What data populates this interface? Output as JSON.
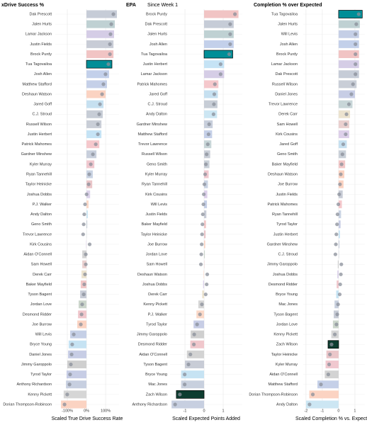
{
  "chart_data": [
    {
      "type": "bar",
      "orientation": "horizontal",
      "title": "xDrive Success %",
      "x_label": "Scaled True Drive Success Rate",
      "categories": [
        "Dak Prescott",
        "Jalen Hurts",
        "Lamar Jackson",
        "Justin Fields",
        "Brock Purdy",
        "Tua Tagovailoa",
        "Josh Allen",
        "Matthew Stafford",
        "Deshaun Watson",
        "Jared Goff",
        "C.J. Stroud",
        "Russell Wilson",
        "Justin Herbert",
        "Patrick Mahomes",
        "Gardner Minshew",
        "Kyler Murray",
        "Ryan Tannehill",
        "Taylor Heinicke",
        "Joshua Dobbs",
        "P.J. Walker",
        "Andy Dalton",
        "Geno Smith",
        "Trevor Lawrence",
        "Kirk Cousins",
        "Aidan O'Connell",
        "Sam Howell",
        "Derek Carr",
        "Baker Mayfield",
        "Tyson Bagent",
        "Jordan Love",
        "Desmond Ridder",
        "Joe Burrow",
        "Will Levis",
        "Bryce Young",
        "Daniel Jones",
        "Jimmy Garoppolo",
        "Tyrod Taylor",
        "Anthony Richardson",
        "Kenny Pickett",
        "Dorian Thompson-Robinson"
      ],
      "values": [
        159,
        148,
        144,
        141,
        141,
        133,
        118,
        107,
        100,
        89,
        85,
        78,
        78,
        67,
        52,
        41,
        33,
        30,
        19,
        11,
        7,
        4,
        1,
        -2,
        -22,
        -22,
        -26,
        -30,
        -33,
        -41,
        -44,
        -48,
        -85,
        -93,
        -96,
        -100,
        -104,
        -107,
        -119,
        -133
      ],
      "xlim": [
        -163,
        170
      ],
      "xticks": [
        {
          "value": -100,
          "label": "-100%"
        },
        {
          "value": 0,
          "label": "0%"
        },
        {
          "value": 100,
          "label": "100%"
        }
      ],
      "grid": true
    },
    {
      "type": "bar",
      "orientation": "horizontal",
      "title": "EPA",
      "subtitle": "Since Week 1",
      "x_label": "Scaled Expected Points Added",
      "categories": [
        "Brock Purdy",
        "Dak Prescott",
        "Jalen Hurts",
        "Josh Allen",
        "Tua Tagovailoa",
        "Justin Herbert",
        "Lamar Jackson",
        "Patrick Mahomes",
        "Jared Goff",
        "C.J. Stroud",
        "Andy Dalton",
        "Gardner Minshew",
        "Matthew Stafford",
        "Trevor Lawrence",
        "Russell Wilson",
        "Geno Smith",
        "Kyler Murray",
        "Ryan Tannehill",
        "Kirk Cousins",
        "Will Levis",
        "Justin Fields",
        "Baker Mayfield",
        "Taylor Heinicke",
        "Joe Burrow",
        "Jordan Love",
        "Sam Howell",
        "Deshaun Watson",
        "Joshua Dobbs",
        "Derek Carr",
        "Kenny Pickett",
        "P.J. Walker",
        "Tyrod Taylor",
        "Jimmy Garoppolo",
        "Desmond Ridder",
        "Aidan O'Connell",
        "Tyson Bagent",
        "Bryce Young",
        "Mac Jones",
        "Zach Wilson",
        "Anthony Richardson"
      ],
      "values": [
        1.8,
        1.55,
        1.55,
        1.55,
        1.5,
        1.05,
        1.05,
        0.75,
        0.72,
        0.7,
        0.68,
        0.45,
        0.42,
        0.38,
        0.32,
        0.28,
        0.24,
        0.2,
        0.17,
        0.15,
        0.12,
        0.1,
        0.08,
        0.06,
        0.04,
        0.02,
        -0.02,
        -0.05,
        -0.1,
        -0.3,
        -0.4,
        -0.55,
        -0.7,
        -0.72,
        -0.9,
        -1.0,
        -1.2,
        -1.2,
        -1.45,
        -1.7
      ],
      "xlim": [
        -1.78,
        2.0
      ],
      "xticks": [
        -1,
        0,
        1
      ],
      "grid": true
    },
    {
      "type": "bar",
      "orientation": "horizontal",
      "title": "Completion % over Expected",
      "x_label": "Scaled Completion % vs. Expected",
      "categories": [
        "Tua Tagovailoa",
        "Jalen Hurts",
        "Will Levis",
        "Josh Allen",
        "Brock Purdy",
        "Lamar Jackson",
        "Dak Prescott",
        "Russell Wilson",
        "Daniel Jones",
        "Trevor Lawrence",
        "Derek Carr",
        "Sam Howell",
        "Kirk Cousins",
        "Jared Goff",
        "Geno Smith",
        "Baker Mayfield",
        "Deshaun Watson",
        "Joe Burrow",
        "Justin Fields",
        "Patrick Mahomes",
        "Ryan Tannehill",
        "Tyrod Taylor",
        "Justin Herbert",
        "Gardner Minshew",
        "C.J. Stroud",
        "Jimmy Garoppolo",
        "Joshua Dobbs",
        "Desmond Ridder",
        "Bryce Young",
        "Mac Jones",
        "Tyson Bagent",
        "Jordan Love",
        "Kenny Pickett",
        "Zach Wilson",
        "Taylor Heinicke",
        "Kyler Murray",
        "Aidan O'Connell",
        "Matthew Stafford",
        "Dorian Thompson-Robinson",
        "Andy Dalton"
      ],
      "values": [
        1.45,
        1.3,
        1.25,
        1.25,
        1.25,
        1.25,
        1.25,
        1.1,
        1.0,
        0.85,
        0.7,
        0.65,
        0.65,
        0.5,
        0.45,
        0.4,
        0.35,
        0.3,
        0.25,
        0.2,
        0.15,
        0.12,
        0.08,
        0.05,
        0.02,
        -0.05,
        -0.08,
        -0.12,
        -0.15,
        -0.25,
        -0.3,
        -0.35,
        -0.45,
        -0.65,
        -0.75,
        -0.8,
        -0.85,
        -1.3,
        -1.8,
        -2.0
      ],
      "xlim": [
        -2.17,
        1.61
      ],
      "xticks": [
        -2,
        -1,
        0,
        1
      ],
      "grid": true
    }
  ],
  "player_colors": {
    "Dak Prescott": "#c6ccd7",
    "Jalen Hurts": "#bfd1d3",
    "Lamar Jackson": "#d5cde6",
    "Justin Fields": "#c8ccd6",
    "Brock Purdy": "#f1c4c4",
    "Tua Tagovailoa": "#008e97",
    "Josh Allen": "#c3d0ea",
    "Matthew Stafford": "#c5d0e8",
    "Deshaun Watson": "#fbd3c2",
    "Jared Goff": "#c6e0f0",
    "C.J. Stroud": "#c7cdd6",
    "Russell Wilson": "#c9ced7",
    "Justin Herbert": "#c5e3f5",
    "Patrick Mahomes": "#f5c8cc",
    "Gardner Minshew": "#c8cfdc",
    "Kyler Murray": "#f0c8cf",
    "Ryan Tannehill": "#c9d3e3",
    "Taylor Heinicke": "#eac6c9",
    "Joshua Dobbs": "#dcd3ea",
    "P.J. Walker": "#fbd9c8",
    "Andy Dalton": "#cce6f3",
    "Geno Smith": "#c9d0d8",
    "Trevor Lawrence": "#c8d6d8",
    "Kirk Cousins": "#ddd0ea",
    "Aidan O'Connell": "#d3d3d3",
    "Sam Howell": "#ead0cf",
    "Derek Carr": "#ece3cf",
    "Baker Mayfield": "#f2c7c7",
    "Tyson Bagent": "#c8ccd6",
    "Jordan Love": "#ccd6cc",
    "Desmond Ridder": "#f0c7cc",
    "Joe Burrow": "#fbd3c2",
    "Will Levis": "#c5cfe6",
    "Bryce Young": "#c6e3f3",
    "Daniel Jones": "#c7cde5",
    "Jimmy Garoppolo": "#cfcfcf",
    "Tyrod Taylor": "#c7cde5",
    "Anthony Richardson": "#c7cfe0",
    "Kenny Pickett": "#d6d6d6",
    "Dorian Thompson-Robinson": "#fbd3c2",
    "Mac Jones": "#c8d0de",
    "Zach Wilson": "#0e3d30"
  }
}
